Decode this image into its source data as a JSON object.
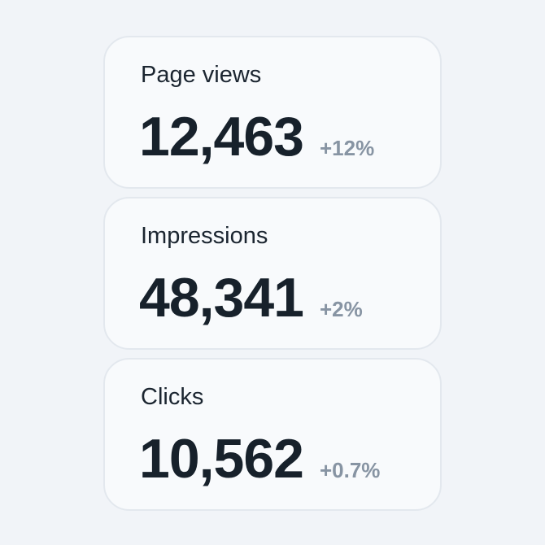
{
  "colors": {
    "page_background": "#f1f4f8",
    "card_background": "#f8fafc",
    "card_border": "#e3e8ee",
    "value_text": "#17212b",
    "label_text": "#1b2530",
    "delta_text": "#8794a3"
  },
  "stats": [
    {
      "label": "Page views",
      "value": "12,463",
      "delta": "+12%"
    },
    {
      "label": "Impressions",
      "value": "48,341",
      "delta": "+2%"
    },
    {
      "label": "Clicks",
      "value": "10,562",
      "delta": "+0.7%"
    }
  ]
}
